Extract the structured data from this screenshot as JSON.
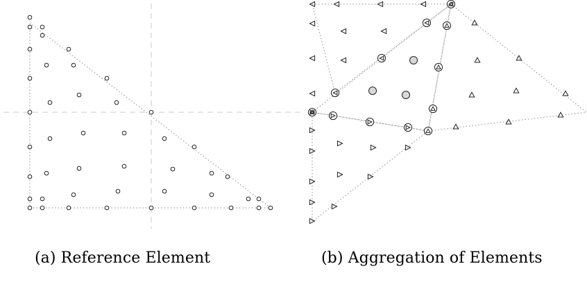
{
  "figure": {
    "caption_a": "(a) Reference Element",
    "caption_b": "(b) Aggregation of Elements"
  },
  "colors": {
    "stroke": "#222222",
    "dotted_line": "#8a8a8a",
    "dashed_axis": "#c8c8c8",
    "highlight_fill": "#d9d9d9"
  }
}
